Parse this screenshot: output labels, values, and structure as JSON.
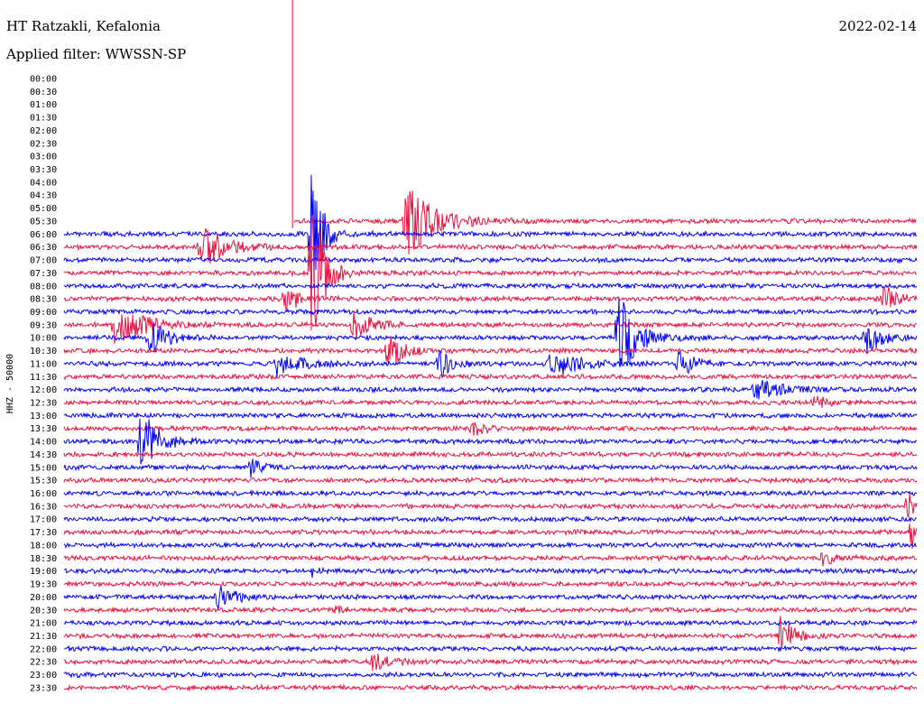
{
  "header": {
    "station": "HT Ratzakli, Kefalonia",
    "filter": "Applied filter: WWSSN-SP",
    "date": "2022-02-14"
  },
  "chart_data": {
    "type": "line",
    "title": "HT Ratzakli, Kefalonia",
    "subtitle": "Applied filter: WWSSN-SP",
    "ylabel": "HHZ - 50000",
    "row_labels": [
      "00:00",
      "00:30",
      "01:00",
      "01:30",
      "02:00",
      "02:30",
      "03:00",
      "03:30",
      "04:00",
      "04:30",
      "05:00",
      "05:30",
      "06:00",
      "06:30",
      "07:00",
      "07:30",
      "08:00",
      "08:30",
      "09:00",
      "09:30",
      "10:00",
      "10:30",
      "11:00",
      "11:30",
      "12:00",
      "12:30",
      "13:00",
      "13:30",
      "14:00",
      "14:30",
      "15:00",
      "15:30",
      "16:00",
      "16:30",
      "17:00",
      "17:30",
      "18:00",
      "18:30",
      "19:00",
      "19:30",
      "20:00",
      "20:30",
      "21:00",
      "21:30",
      "22:00",
      "22:30",
      "23:00",
      "23:30"
    ],
    "trace_start_fraction": {
      "05:30": 0.27
    },
    "colors": {
      "odd_rows": "#e8123f",
      "even_rows": "#0000ff",
      "text": "#000000"
    },
    "events": [
      {
        "row": "05:30",
        "at": 0.4,
        "amplitude": 45,
        "duration": 0.07
      },
      {
        "row": "06:00",
        "at": 0.29,
        "amplitude": 70,
        "duration": 0.03
      },
      {
        "row": "06:30",
        "at": 0.16,
        "amplitude": 30,
        "duration": 0.05
      },
      {
        "row": "07:30",
        "at": 0.29,
        "amplitude": 100,
        "duration": 0.03
      },
      {
        "row": "08:30",
        "at": 0.26,
        "amplitude": 20,
        "duration": 0.03
      },
      {
        "row": "08:30",
        "at": 0.96,
        "amplitude": 16,
        "duration": 0.04
      },
      {
        "row": "09:30",
        "at": 0.06,
        "amplitude": 28,
        "duration": 0.06
      },
      {
        "row": "09:30",
        "at": 0.34,
        "amplitude": 18,
        "duration": 0.04
      },
      {
        "row": "10:00",
        "at": 0.1,
        "amplitude": 20,
        "duration": 0.04
      },
      {
        "row": "10:00",
        "at": 0.65,
        "amplitude": 55,
        "duration": 0.04
      },
      {
        "row": "10:00",
        "at": 0.94,
        "amplitude": 18,
        "duration": 0.04
      },
      {
        "row": "10:30",
        "at": 0.38,
        "amplitude": 20,
        "duration": 0.04
      },
      {
        "row": "11:00",
        "at": 0.25,
        "amplitude": 14,
        "duration": 0.06
      },
      {
        "row": "11:00",
        "at": 0.44,
        "amplitude": 16,
        "duration": 0.03
      },
      {
        "row": "11:00",
        "at": 0.57,
        "amplitude": 20,
        "duration": 0.06
      },
      {
        "row": "11:00",
        "at": 0.72,
        "amplitude": 16,
        "duration": 0.04
      },
      {
        "row": "12:00",
        "at": 0.81,
        "amplitude": 12,
        "duration": 0.06
      },
      {
        "row": "12:30",
        "at": 0.88,
        "amplitude": 8,
        "duration": 0.03
      },
      {
        "row": "13:30",
        "at": 0.48,
        "amplitude": 8,
        "duration": 0.03
      },
      {
        "row": "14:00",
        "at": 0.09,
        "amplitude": 40,
        "duration": 0.04
      },
      {
        "row": "15:00",
        "at": 0.22,
        "amplitude": 14,
        "duration": 0.02
      },
      {
        "row": "16:30",
        "at": 0.99,
        "amplitude": 20,
        "duration": 0.01
      },
      {
        "row": "17:30",
        "at": 0.995,
        "amplitude": 25,
        "duration": 0.01
      },
      {
        "row": "18:30",
        "at": 0.89,
        "amplitude": 8,
        "duration": 0.03
      },
      {
        "row": "19:00",
        "at": 0.29,
        "amplitude": 10,
        "duration": 0.01
      },
      {
        "row": "20:00",
        "at": 0.18,
        "amplitude": 14,
        "duration": 0.04
      },
      {
        "row": "20:30",
        "at": 0.32,
        "amplitude": 8,
        "duration": 0.01
      },
      {
        "row": "21:30",
        "at": 0.84,
        "amplitude": 24,
        "duration": 0.03
      },
      {
        "row": "22:30",
        "at": 0.36,
        "amplitude": 9,
        "duration": 0.05
      }
    ]
  }
}
